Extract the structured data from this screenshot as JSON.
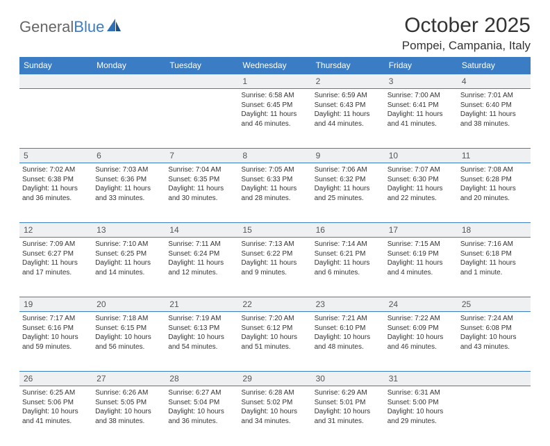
{
  "brand": {
    "name_gray": "General",
    "name_blue": "Blue"
  },
  "title": "October 2025",
  "location": "Pompei, Campania, Italy",
  "colors": {
    "header_bg": "#3b7dc4",
    "header_fg": "#ffffff",
    "daynum_bg": "#eef0f2",
    "border": "#3b7dc4",
    "text": "#333333",
    "logo_gray": "#666666"
  },
  "days_of_week": [
    "Sunday",
    "Monday",
    "Tuesday",
    "Wednesday",
    "Thursday",
    "Friday",
    "Saturday"
  ],
  "weeks": [
    [
      {
        "n": "",
        "sunrise": "",
        "sunset": "",
        "daylight": ""
      },
      {
        "n": "",
        "sunrise": "",
        "sunset": "",
        "daylight": ""
      },
      {
        "n": "",
        "sunrise": "",
        "sunset": "",
        "daylight": ""
      },
      {
        "n": "1",
        "sunrise": "Sunrise: 6:58 AM",
        "sunset": "Sunset: 6:45 PM",
        "daylight": "Daylight: 11 hours and 46 minutes."
      },
      {
        "n": "2",
        "sunrise": "Sunrise: 6:59 AM",
        "sunset": "Sunset: 6:43 PM",
        "daylight": "Daylight: 11 hours and 44 minutes."
      },
      {
        "n": "3",
        "sunrise": "Sunrise: 7:00 AM",
        "sunset": "Sunset: 6:41 PM",
        "daylight": "Daylight: 11 hours and 41 minutes."
      },
      {
        "n": "4",
        "sunrise": "Sunrise: 7:01 AM",
        "sunset": "Sunset: 6:40 PM",
        "daylight": "Daylight: 11 hours and 38 minutes."
      }
    ],
    [
      {
        "n": "5",
        "sunrise": "Sunrise: 7:02 AM",
        "sunset": "Sunset: 6:38 PM",
        "daylight": "Daylight: 11 hours and 36 minutes."
      },
      {
        "n": "6",
        "sunrise": "Sunrise: 7:03 AM",
        "sunset": "Sunset: 6:36 PM",
        "daylight": "Daylight: 11 hours and 33 minutes."
      },
      {
        "n": "7",
        "sunrise": "Sunrise: 7:04 AM",
        "sunset": "Sunset: 6:35 PM",
        "daylight": "Daylight: 11 hours and 30 minutes."
      },
      {
        "n": "8",
        "sunrise": "Sunrise: 7:05 AM",
        "sunset": "Sunset: 6:33 PM",
        "daylight": "Daylight: 11 hours and 28 minutes."
      },
      {
        "n": "9",
        "sunrise": "Sunrise: 7:06 AM",
        "sunset": "Sunset: 6:32 PM",
        "daylight": "Daylight: 11 hours and 25 minutes."
      },
      {
        "n": "10",
        "sunrise": "Sunrise: 7:07 AM",
        "sunset": "Sunset: 6:30 PM",
        "daylight": "Daylight: 11 hours and 22 minutes."
      },
      {
        "n": "11",
        "sunrise": "Sunrise: 7:08 AM",
        "sunset": "Sunset: 6:28 PM",
        "daylight": "Daylight: 11 hours and 20 minutes."
      }
    ],
    [
      {
        "n": "12",
        "sunrise": "Sunrise: 7:09 AM",
        "sunset": "Sunset: 6:27 PM",
        "daylight": "Daylight: 11 hours and 17 minutes."
      },
      {
        "n": "13",
        "sunrise": "Sunrise: 7:10 AM",
        "sunset": "Sunset: 6:25 PM",
        "daylight": "Daylight: 11 hours and 14 minutes."
      },
      {
        "n": "14",
        "sunrise": "Sunrise: 7:11 AM",
        "sunset": "Sunset: 6:24 PM",
        "daylight": "Daylight: 11 hours and 12 minutes."
      },
      {
        "n": "15",
        "sunrise": "Sunrise: 7:13 AM",
        "sunset": "Sunset: 6:22 PM",
        "daylight": "Daylight: 11 hours and 9 minutes."
      },
      {
        "n": "16",
        "sunrise": "Sunrise: 7:14 AM",
        "sunset": "Sunset: 6:21 PM",
        "daylight": "Daylight: 11 hours and 6 minutes."
      },
      {
        "n": "17",
        "sunrise": "Sunrise: 7:15 AM",
        "sunset": "Sunset: 6:19 PM",
        "daylight": "Daylight: 11 hours and 4 minutes."
      },
      {
        "n": "18",
        "sunrise": "Sunrise: 7:16 AM",
        "sunset": "Sunset: 6:18 PM",
        "daylight": "Daylight: 11 hours and 1 minute."
      }
    ],
    [
      {
        "n": "19",
        "sunrise": "Sunrise: 7:17 AM",
        "sunset": "Sunset: 6:16 PM",
        "daylight": "Daylight: 10 hours and 59 minutes."
      },
      {
        "n": "20",
        "sunrise": "Sunrise: 7:18 AM",
        "sunset": "Sunset: 6:15 PM",
        "daylight": "Daylight: 10 hours and 56 minutes."
      },
      {
        "n": "21",
        "sunrise": "Sunrise: 7:19 AM",
        "sunset": "Sunset: 6:13 PM",
        "daylight": "Daylight: 10 hours and 54 minutes."
      },
      {
        "n": "22",
        "sunrise": "Sunrise: 7:20 AM",
        "sunset": "Sunset: 6:12 PM",
        "daylight": "Daylight: 10 hours and 51 minutes."
      },
      {
        "n": "23",
        "sunrise": "Sunrise: 7:21 AM",
        "sunset": "Sunset: 6:10 PM",
        "daylight": "Daylight: 10 hours and 48 minutes."
      },
      {
        "n": "24",
        "sunrise": "Sunrise: 7:22 AM",
        "sunset": "Sunset: 6:09 PM",
        "daylight": "Daylight: 10 hours and 46 minutes."
      },
      {
        "n": "25",
        "sunrise": "Sunrise: 7:24 AM",
        "sunset": "Sunset: 6:08 PM",
        "daylight": "Daylight: 10 hours and 43 minutes."
      }
    ],
    [
      {
        "n": "26",
        "sunrise": "Sunrise: 6:25 AM",
        "sunset": "Sunset: 5:06 PM",
        "daylight": "Daylight: 10 hours and 41 minutes."
      },
      {
        "n": "27",
        "sunrise": "Sunrise: 6:26 AM",
        "sunset": "Sunset: 5:05 PM",
        "daylight": "Daylight: 10 hours and 38 minutes."
      },
      {
        "n": "28",
        "sunrise": "Sunrise: 6:27 AM",
        "sunset": "Sunset: 5:04 PM",
        "daylight": "Daylight: 10 hours and 36 minutes."
      },
      {
        "n": "29",
        "sunrise": "Sunrise: 6:28 AM",
        "sunset": "Sunset: 5:02 PM",
        "daylight": "Daylight: 10 hours and 34 minutes."
      },
      {
        "n": "30",
        "sunrise": "Sunrise: 6:29 AM",
        "sunset": "Sunset: 5:01 PM",
        "daylight": "Daylight: 10 hours and 31 minutes."
      },
      {
        "n": "31",
        "sunrise": "Sunrise: 6:31 AM",
        "sunset": "Sunset: 5:00 PM",
        "daylight": "Daylight: 10 hours and 29 minutes."
      },
      {
        "n": "",
        "sunrise": "",
        "sunset": "",
        "daylight": ""
      }
    ]
  ]
}
